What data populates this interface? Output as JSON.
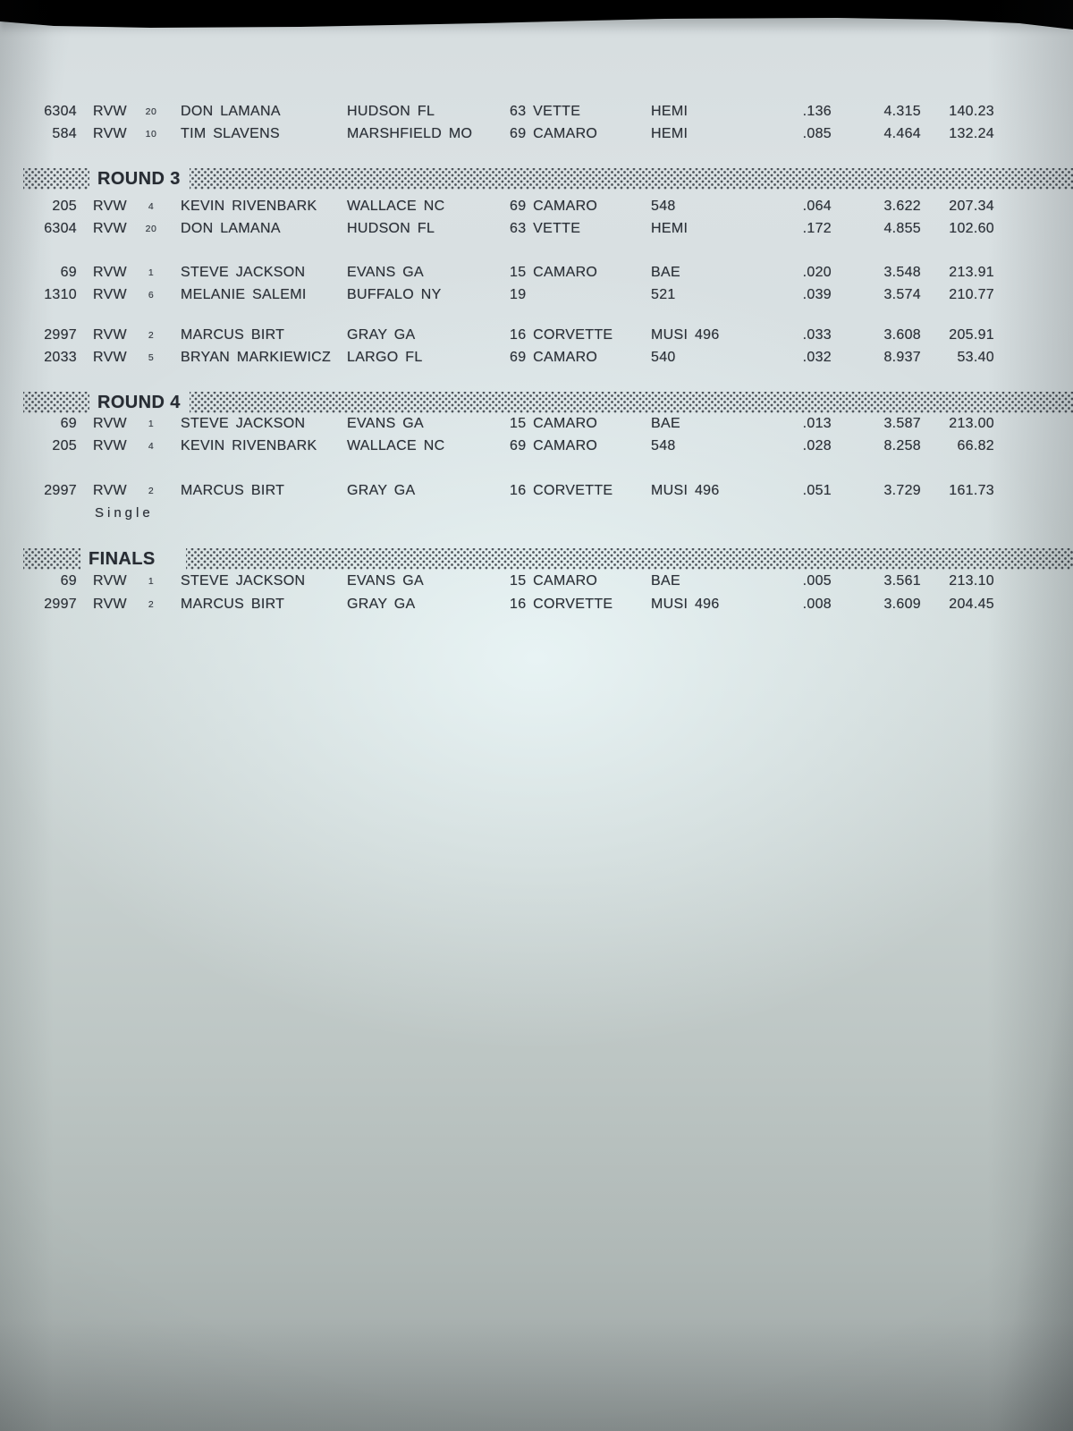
{
  "document": {
    "kind": "printed race results sheet (photo)",
    "class_column_value": "RVW"
  },
  "colors": {
    "backdrop": "#060607",
    "paper_light": "#e9f2f3",
    "paper_dark": "#9aa2a1",
    "ink": "#2c3138",
    "halftone_dot": "#30363e"
  },
  "sections": [
    {
      "label": "",
      "rows": [
        {
          "num": "6304",
          "cls": "RVW",
          "seed": "20",
          "driver": "DON LAMANA",
          "town": "HUDSON FL",
          "car": "63 VETTE",
          "engine": "HEMI",
          "rt": ".136",
          "et": "4.315",
          "mph": "140.23"
        },
        {
          "num": "584",
          "cls": "RVW",
          "seed": "10",
          "driver": "TIM SLAVENS",
          "town": "MARSHFIELD MO",
          "car": "69 CAMARO",
          "engine": "HEMI",
          "rt": ".085",
          "et": "4.464",
          "mph": "132.24"
        }
      ]
    },
    {
      "label": "ROUND 3",
      "rows": [
        {
          "num": "205",
          "cls": "RVW",
          "seed": "4",
          "driver": "KEVIN RIVENBARK",
          "town": "WALLACE NC",
          "car": "69 CAMARO",
          "engine": "548",
          "rt": ".064",
          "et": "3.622",
          "mph": "207.34"
        },
        {
          "num": "6304",
          "cls": "RVW",
          "seed": "20",
          "driver": "DON LAMANA",
          "town": "HUDSON FL",
          "car": "63 VETTE",
          "engine": "HEMI",
          "rt": ".172",
          "et": "4.855",
          "mph": "102.60"
        },
        {
          "num": "69",
          "cls": "RVW",
          "seed": "1",
          "driver": "STEVE JACKSON",
          "town": "EVANS GA",
          "car": "15 CAMARO",
          "engine": "BAE",
          "rt": ".020",
          "et": "3.548",
          "mph": "213.91"
        },
        {
          "num": "1310",
          "cls": "RVW",
          "seed": "6",
          "driver": "MELANIE SALEMI",
          "town": "BUFFALO NY",
          "car": "19",
          "engine": "521",
          "rt": ".039",
          "et": "3.574",
          "mph": "210.77"
        },
        {
          "num": "2997",
          "cls": "RVW",
          "seed": "2",
          "driver": "MARCUS BIRT",
          "town": "GRAY GA",
          "car": "16 CORVETTE",
          "engine": "MUSI 496",
          "rt": ".033",
          "et": "3.608",
          "mph": "205.91"
        },
        {
          "num": "2033",
          "cls": "RVW",
          "seed": "5",
          "driver": "BRYAN MARKIEWICZ",
          "town": "LARGO FL",
          "car": "69 CAMARO",
          "engine": "540",
          "rt": ".032",
          "et": "8.937",
          "mph": "53.40"
        }
      ]
    },
    {
      "label": "ROUND 4",
      "rows": [
        {
          "num": "69",
          "cls": "RVW",
          "seed": "1",
          "driver": "STEVE JACKSON",
          "town": "EVANS GA",
          "car": "15 CAMARO",
          "engine": "BAE",
          "rt": ".013",
          "et": "3.587",
          "mph": "213.00"
        },
        {
          "num": "205",
          "cls": "RVW",
          "seed": "4",
          "driver": "KEVIN RIVENBARK",
          "town": "WALLACE NC",
          "car": "69 CAMARO",
          "engine": "548",
          "rt": ".028",
          "et": "8.258",
          "mph": "66.82"
        },
        {
          "num": "2997",
          "cls": "RVW",
          "seed": "2",
          "driver": "MARCUS BIRT",
          "town": "GRAY GA",
          "car": "16 CORVETTE",
          "engine": "MUSI 496",
          "rt": ".051",
          "et": "3.729",
          "mph": "161.73",
          "note": "Single"
        }
      ]
    },
    {
      "label": "FINALS",
      "rows": [
        {
          "num": "69",
          "cls": "RVW",
          "seed": "1",
          "driver": "STEVE JACKSON",
          "town": "EVANS GA",
          "car": "15 CAMARO",
          "engine": "BAE",
          "rt": ".005",
          "et": "3.561",
          "mph": "213.10"
        },
        {
          "num": "2997",
          "cls": "RVW",
          "seed": "2",
          "driver": "MARCUS BIRT",
          "town": "GRAY GA",
          "car": "16 CORVETTE",
          "engine": "MUSI 496",
          "rt": ".008",
          "et": "3.609",
          "mph": "204.45"
        }
      ]
    }
  ]
}
